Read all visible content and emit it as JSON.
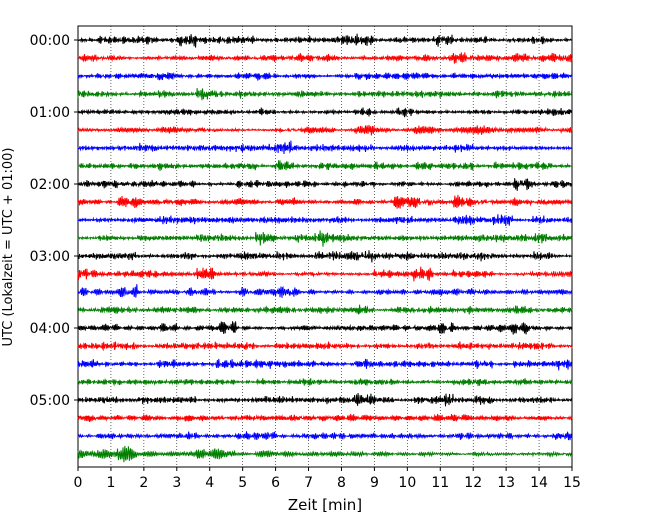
{
  "chart_data": {
    "type": "line",
    "title": "",
    "xlabel": "Zeit  [min]",
    "ylabel": "UTC (Lokalzeit = UTC + 01:00)",
    "xlim": [
      0,
      15
    ],
    "x_ticks": [
      "0",
      "1",
      "2",
      "3",
      "4",
      "5",
      "6",
      "7",
      "8",
      "9",
      "10",
      "11",
      "12",
      "13",
      "14",
      "15"
    ],
    "y_ticks": [
      "00:00",
      "01:00",
      "02:00",
      "03:00",
      "04:00",
      "05:00"
    ],
    "grid": "vertical dotted lines at each minute",
    "trace_interval_minutes": 15,
    "trace_count": 24,
    "trace_colors": [
      "#000000",
      "#ff0000",
      "#0000ff",
      "#007f00"
    ],
    "trace_starts": [
      "00:00",
      "00:15",
      "00:30",
      "00:45",
      "01:00",
      "01:15",
      "01:30",
      "01:45",
      "02:00",
      "02:15",
      "02:30",
      "02:45",
      "03:00",
      "03:15",
      "03:30",
      "03:45",
      "04:00",
      "04:15",
      "04:30",
      "04:45",
      "05:00",
      "05:15",
      "05:30",
      "05:45"
    ]
  }
}
